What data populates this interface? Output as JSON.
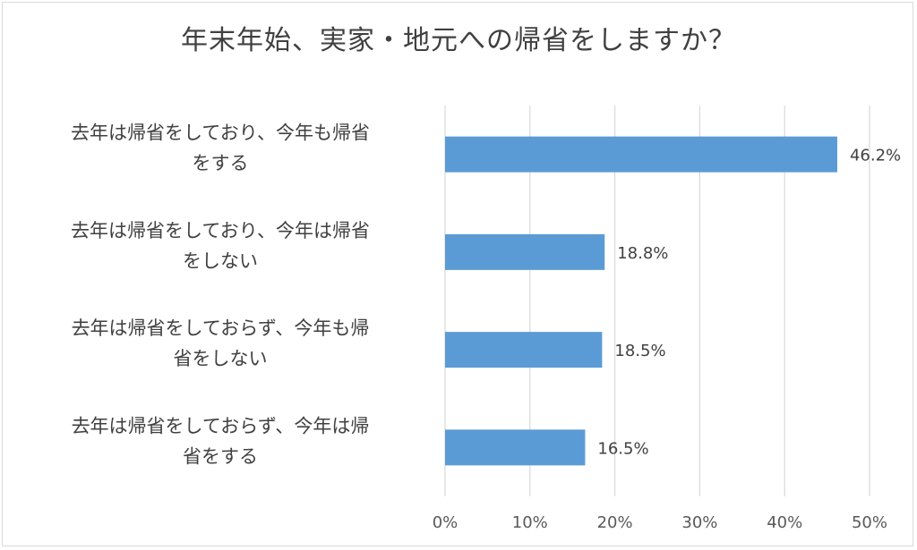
{
  "chart_data": {
    "type": "bar",
    "orientation": "horizontal",
    "title": "年末年始、実家・地元への帰省をしますか？",
    "categories": [
      [
        "去年は帰省をしており、今年も帰省",
        "をする"
      ],
      [
        "去年は帰省をしており、今年は帰省",
        "をしない"
      ],
      [
        "去年は帰省をしておらず、今年も帰",
        "省をしない"
      ],
      [
        "去年は帰省をしておらず、今年は帰",
        "省をする"
      ]
    ],
    "values": [
      46.2,
      18.8,
      18.5,
      16.5
    ],
    "data_labels": [
      "46.2%",
      "18.8%",
      "18.5%",
      "16.5%"
    ],
    "xlim": [
      0,
      50
    ],
    "x_ticks": [
      0,
      10,
      20,
      30,
      40,
      50
    ],
    "x_tick_labels": [
      "0%",
      "10%",
      "20%",
      "30%",
      "40%",
      "50%"
    ],
    "grid": true,
    "bar_color": "#5b9bd5",
    "grid_color": "#d9d9d9"
  }
}
